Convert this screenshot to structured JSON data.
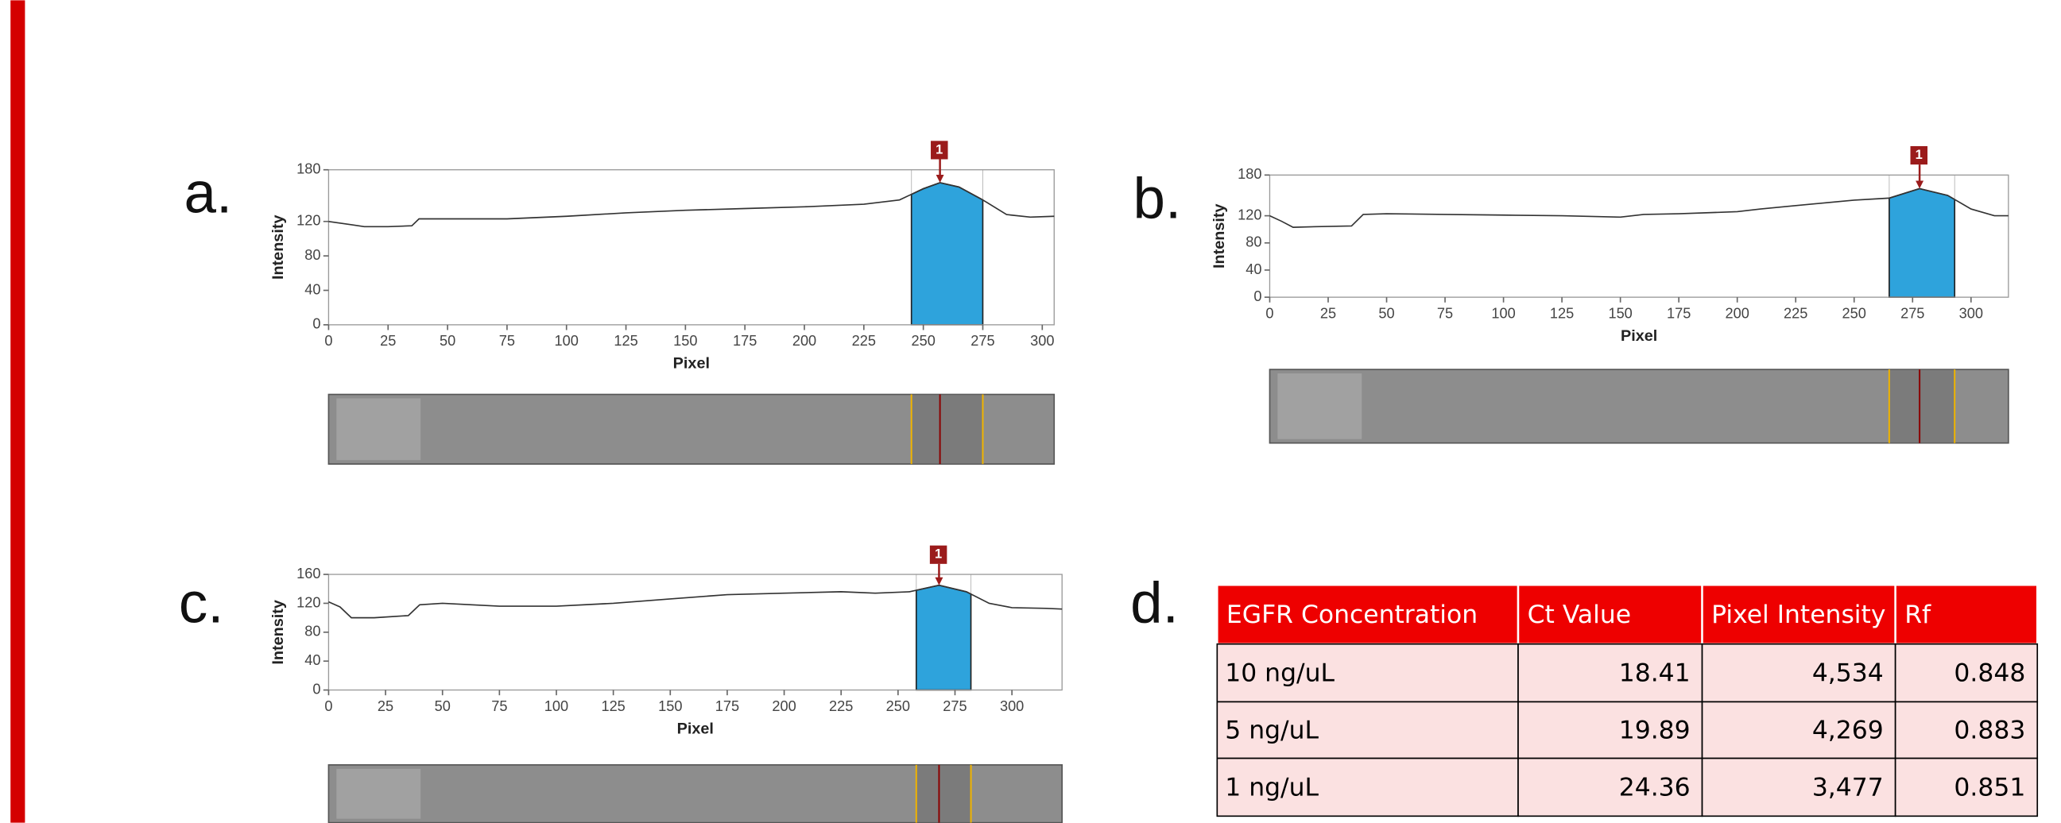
{
  "chart_data": [
    {
      "type": "line",
      "panel": "a.",
      "xlabel": "Pixel",
      "ylabel": "Intensity",
      "color": "#333333",
      "region_color": "#2ea3dc",
      "xlim": [
        0,
        305
      ],
      "ylim": [
        0,
        180
      ],
      "xticks": [
        0,
        25,
        50,
        75,
        100,
        125,
        150,
        175,
        200,
        225,
        250,
        275,
        300
      ],
      "yticks": [
        0,
        40,
        80,
        120,
        180
      ],
      "x": [
        0,
        5,
        10,
        15,
        20,
        25,
        35,
        38,
        50,
        75,
        100,
        125,
        150,
        175,
        200,
        225,
        240,
        250,
        257,
        265,
        275,
        285,
        295,
        305
      ],
      "values": [
        120,
        118,
        116,
        114,
        114,
        114,
        115,
        123,
        123,
        123,
        126,
        130,
        133,
        135,
        137,
        140,
        145,
        158,
        165,
        160,
        145,
        128,
        125,
        126
      ],
      "peak_region": [
        245,
        275
      ],
      "peak": {
        "label": "1",
        "x": 257
      }
    },
    {
      "type": "line",
      "panel": "b.",
      "xlabel": "Pixel",
      "ylabel": "Intensity",
      "color": "#333333",
      "region_color": "#2ea3dc",
      "xlim": [
        0,
        316
      ],
      "ylim": [
        0,
        180
      ],
      "xticks": [
        0,
        25,
        50,
        75,
        100,
        125,
        150,
        175,
        200,
        225,
        250,
        275,
        300
      ],
      "yticks": [
        0,
        40,
        80,
        120,
        180
      ],
      "x": [
        0,
        5,
        10,
        20,
        35,
        40,
        50,
        75,
        100,
        125,
        150,
        160,
        175,
        200,
        210,
        225,
        250,
        265,
        278,
        290,
        300,
        310,
        316
      ],
      "values": [
        120,
        112,
        103,
        104,
        105,
        122,
        123,
        122,
        121,
        120,
        118,
        122,
        123,
        126,
        130,
        135,
        143,
        146,
        160,
        150,
        130,
        120,
        120
      ],
      "peak_region": [
        265,
        293
      ],
      "peak": {
        "label": "1",
        "x": 278
      }
    },
    {
      "type": "line",
      "panel": "c.",
      "xlabel": "Pixel",
      "ylabel": "Intensity",
      "color": "#333333",
      "region_color": "#2ea3dc",
      "xlim": [
        0,
        322
      ],
      "ylim": [
        0,
        160
      ],
      "xticks": [
        0,
        25,
        50,
        75,
        100,
        125,
        150,
        175,
        200,
        225,
        250,
        275,
        300
      ],
      "yticks": [
        0,
        40,
        80,
        120,
        160
      ],
      "x": [
        0,
        5,
        10,
        20,
        35,
        40,
        50,
        75,
        100,
        125,
        150,
        175,
        200,
        225,
        240,
        255,
        268,
        280,
        290,
        300,
        315,
        322
      ],
      "values": [
        122,
        115,
        100,
        100,
        103,
        118,
        120,
        116,
        116,
        120,
        126,
        132,
        134,
        136,
        134,
        136,
        145,
        136,
        120,
        114,
        113,
        112
      ],
      "peak_region": [
        258,
        282
      ],
      "peak": {
        "label": "1",
        "x": 268
      }
    }
  ],
  "table": {
    "panel": "d.",
    "header": [
      "EGFR Concentration",
      "Ct Value",
      "Pixel Intensity",
      "Rf"
    ],
    "rows": [
      [
        "10 ng/uL",
        "18.41",
        "4,534",
        "0.848"
      ],
      [
        "5 ng/uL",
        "19.89",
        "4,269",
        "0.883"
      ],
      [
        "1 ng/uL",
        "24.36",
        "3,477",
        "0.851"
      ]
    ]
  }
}
